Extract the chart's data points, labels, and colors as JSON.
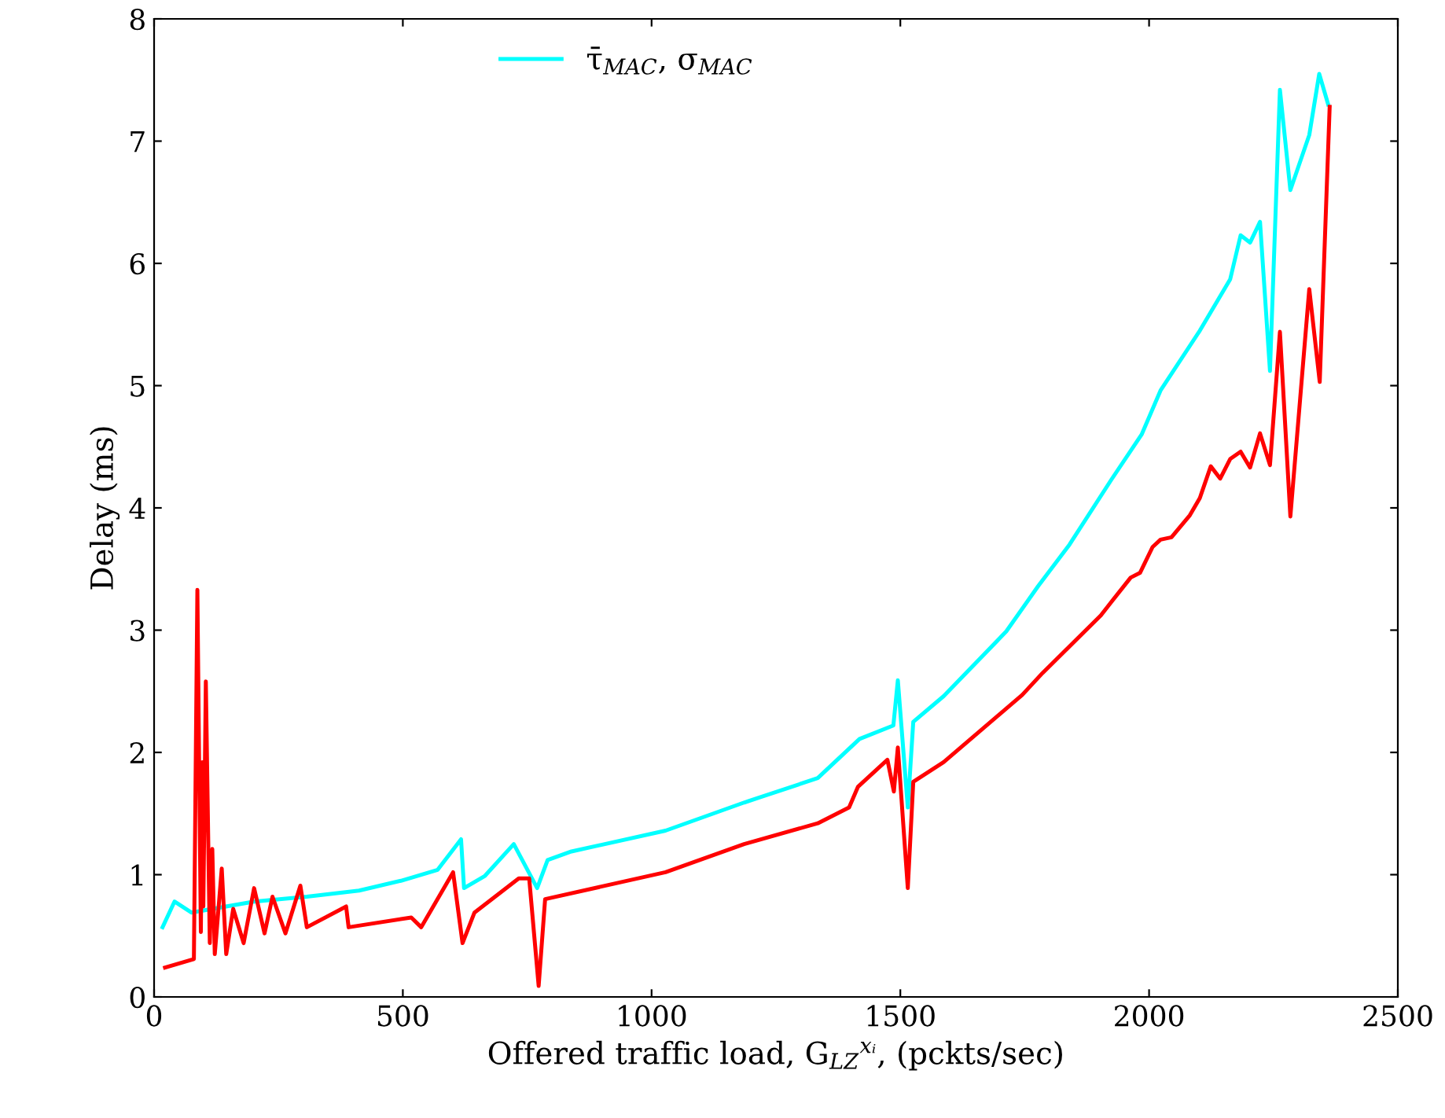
{
  "chart_data": {
    "type": "line",
    "xlabel": "Offered traffic load, G$_{LZ}$$^{xᵢ}$, (pckts/sec)",
    "ylabel": "Delay (ms)",
    "xlim": [
      0,
      2500
    ],
    "ylim": [
      0,
      8
    ],
    "xticks": [
      0,
      500,
      1000,
      1500,
      2000,
      2500
    ],
    "yticks": [
      0,
      1,
      2,
      3,
      4,
      5,
      6,
      7,
      8
    ],
    "grid": false,
    "legend": "top",
    "line_style": "solid",
    "marker": "none",
    "series": [
      {
        "name": "τ̄$_{MAC}$, σ$_{MAC}$",
        "color": "#00ffff",
        "x": [
          17,
          41,
          75,
          201,
          307,
          412,
          496,
          570,
          617,
          623,
          665,
          723,
          770,
          791,
          839,
          1028,
          1186,
          1334,
          1418,
          1486,
          1495,
          1515,
          1526,
          1587,
          1713,
          1777,
          1840,
          1924,
          1985,
          2023,
          2102,
          2163,
          2184,
          2203,
          2223,
          2243,
          2263,
          2284,
          2322,
          2342,
          2360
        ],
        "values": [
          0.57,
          0.78,
          0.69,
          0.78,
          0.82,
          0.87,
          0.95,
          1.04,
          1.29,
          0.89,
          0.99,
          1.25,
          0.89,
          1.12,
          1.19,
          1.36,
          1.59,
          1.79,
          2.11,
          2.22,
          2.59,
          1.55,
          2.25,
          2.46,
          2.99,
          3.36,
          3.7,
          4.23,
          4.6,
          4.96,
          5.45,
          5.87,
          6.23,
          6.17,
          6.34,
          5.12,
          7.42,
          6.6,
          7.05,
          7.55,
          7.3
        ]
      },
      {
        "color": "#ff0000",
        "x": [
          22,
          80,
          87,
          94,
          97,
          99,
          104,
          112,
          117,
          122,
          136,
          145,
          159,
          180,
          201,
          222,
          238,
          264,
          294,
          307,
          386,
          391,
          517,
          537,
          601,
          620,
          644,
          733,
          754,
          773,
          786,
          1028,
          1186,
          1334,
          1397,
          1415,
          1474,
          1487,
          1495,
          1515,
          1526,
          1587,
          1745,
          1786,
          1903,
          1924,
          1963,
          1982,
          2007,
          2023,
          2045,
          2082,
          2102,
          2124,
          2143,
          2163,
          2184,
          2203,
          2223,
          2243,
          2263,
          2284,
          2322,
          2343,
          2363
        ],
        "values": [
          0.24,
          0.31,
          3.33,
          0.53,
          1.92,
          0.74,
          2.58,
          0.44,
          1.21,
          0.35,
          1.05,
          0.35,
          0.72,
          0.44,
          0.89,
          0.52,
          0.82,
          0.52,
          0.91,
          0.57,
          0.74,
          0.57,
          0.65,
          0.57,
          1.02,
          0.44,
          0.69,
          0.97,
          0.97,
          0.09,
          0.8,
          1.02,
          1.25,
          1.42,
          1.55,
          1.72,
          1.94,
          1.68,
          2.04,
          0.89,
          1.76,
          1.92,
          2.47,
          2.65,
          3.12,
          3.23,
          3.43,
          3.47,
          3.68,
          3.74,
          3.76,
          3.94,
          4.08,
          4.34,
          4.24,
          4.4,
          4.46,
          4.33,
          4.61,
          4.35,
          5.44,
          3.93,
          5.79,
          5.03,
          7.28
        ]
      }
    ]
  }
}
